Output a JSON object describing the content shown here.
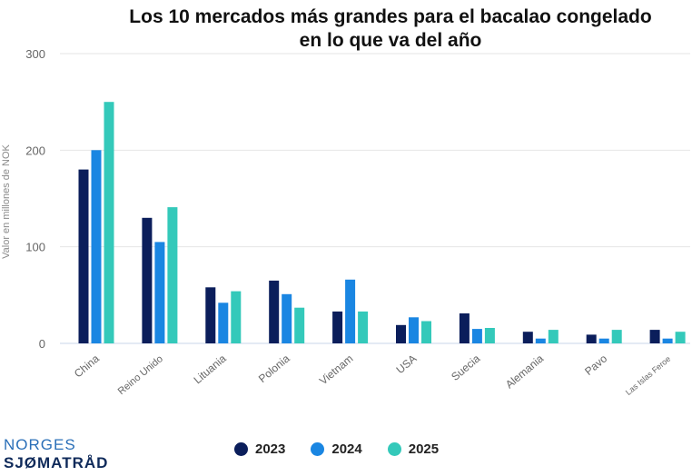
{
  "chart_data": {
    "type": "bar",
    "title_line1": "Los 10 mercados más grandes para el bacalao congelado",
    "title_line2": "en lo que va del año",
    "xlabel": "",
    "ylabel": "Valor en millones de NOK",
    "ylim": [
      0,
      300
    ],
    "yticks": [
      "0",
      "100",
      "200",
      "300"
    ],
    "grid": true,
    "legend_position": "bottom",
    "categories": [
      "China",
      "Reino Unido",
      "Lituania",
      "Polonia",
      "Vietnam",
      "USA",
      "Suecia",
      "Alemania",
      "Pavo",
      "Las Islas Feroe"
    ],
    "series": [
      {
        "name": "2023",
        "color": "#0b1e5b",
        "values": [
          180,
          130,
          58,
          65,
          33,
          19,
          31,
          12,
          9,
          14
        ]
      },
      {
        "name": "2024",
        "color": "#1a86e2",
        "values": [
          200,
          105,
          42,
          51,
          66,
          27,
          15,
          5,
          5,
          5
        ]
      },
      {
        "name": "2025",
        "color": "#34c9ba",
        "values": [
          250,
          141,
          54,
          37,
          33,
          23,
          16,
          14,
          14,
          12
        ]
      }
    ]
  },
  "logo": {
    "line1": "NORGES",
    "line2": "SJØMATRÅD"
  }
}
